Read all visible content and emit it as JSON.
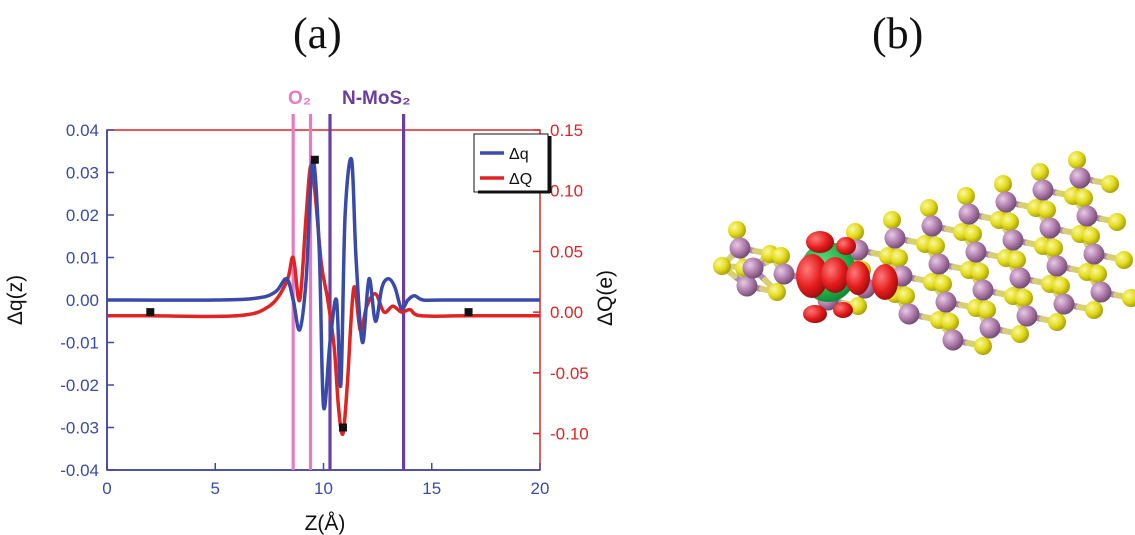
{
  "panels": {
    "a_label": "(a)",
    "b_label": "(b)"
  },
  "chart_data": {
    "type": "line",
    "title": "",
    "xlabel": "Z(Å)",
    "ylabel_left": "Δq(z)",
    "ylabel_right": "ΔQ(e)",
    "xlim": [
      0,
      20
    ],
    "ylim_left": [
      -0.04,
      0.04
    ],
    "ylim_right": [
      -0.13,
      0.15
    ],
    "x_ticks": [
      "0",
      "5",
      "10",
      "15",
      "20"
    ],
    "y_left_ticks": [
      "0.04",
      "0.03",
      "0.02",
      "0.01",
      "0.00",
      "-0.01",
      "-0.02",
      "-0.03",
      "-0.04"
    ],
    "y_right_ticks": [
      "0.15",
      "0.10",
      "0.05",
      "0.00",
      "-0.05",
      "-0.10"
    ],
    "annotations": [
      {
        "text": "O₂",
        "color": "#e87ac4",
        "x": 9.0
      },
      {
        "text": "N-MoS₂",
        "color": "#6a3ea0",
        "x": 12.0
      }
    ],
    "vertical_lines": [
      {
        "x": 8.6,
        "color": "#e87ac4"
      },
      {
        "x": 9.4,
        "color": "#e87ac4"
      },
      {
        "x": 10.3,
        "color": "#6a3ea0"
      },
      {
        "x": 13.7,
        "color": "#6a3ea0"
      }
    ],
    "legend": {
      "position": "top-right",
      "entries": [
        "Δq",
        "ΔQ"
      ]
    },
    "series": [
      {
        "name": "Δq",
        "axis": "left",
        "color": "#3a4aa8",
        "x": [
          0,
          5,
          7,
          7.8,
          8.3,
          8.6,
          8.9,
          9.2,
          9.5,
          9.8,
          10.0,
          10.3,
          10.6,
          10.8,
          11.0,
          11.3,
          11.5,
          11.8,
          12.1,
          12.4,
          12.7,
          13.0,
          13.3,
          13.6,
          13.9,
          14.2,
          14.6,
          15.5,
          20
        ],
        "y": [
          0.0,
          0.0,
          0.0005,
          0.002,
          0.005,
          0.0,
          -0.007,
          0.005,
          0.033,
          0.012,
          -0.025,
          -0.01,
          0.0,
          -0.02,
          0.02,
          0.033,
          0.01,
          -0.01,
          0.005,
          -0.005,
          0.003,
          0.005,
          0.003,
          -0.002,
          0.0,
          0.001,
          0.0,
          0.0,
          0.0
        ]
      },
      {
        "name": "ΔQ",
        "axis": "right",
        "color": "#e02424",
        "x": [
          0,
          2,
          6,
          7.5,
          8.3,
          8.6,
          8.9,
          9.2,
          9.4,
          9.6,
          9.9,
          10.2,
          10.5,
          10.7,
          10.9,
          11.1,
          11.4,
          11.7,
          12.0,
          12.4,
          12.8,
          13.2,
          13.6,
          14.0,
          14.5,
          16.7,
          20
        ],
        "y": [
          -0.003,
          -0.003,
          -0.003,
          0.005,
          0.025,
          0.045,
          0.01,
          0.08,
          0.12,
          0.1,
          0.04,
          0.01,
          -0.03,
          -0.08,
          -0.1,
          -0.06,
          0.02,
          -0.015,
          0.005,
          0.015,
          0.0,
          0.005,
          0.0,
          0.002,
          -0.003,
          -0.003,
          -0.003
        ]
      }
    ],
    "markers": [
      {
        "axis": "right",
        "x": 2.0,
        "y": 0.0
      },
      {
        "axis": "left",
        "x": 9.6,
        "y": 0.033
      },
      {
        "axis": "left",
        "x": 10.9,
        "y": -0.03
      },
      {
        "axis": "right",
        "x": 16.7,
        "y": 0.0
      }
    ]
  },
  "structure_image": {
    "colors": {
      "sulfur": "#e3dc1c",
      "molybdenum": "#b07cad",
      "bond_s": "#d8d070",
      "bond_mo": "#b48ab0",
      "charge_red": "#e41c1c",
      "charge_green": "#1fb34a"
    }
  }
}
